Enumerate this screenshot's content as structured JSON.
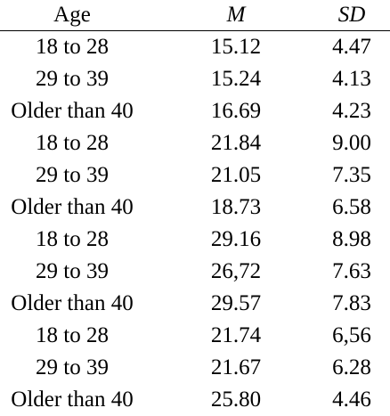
{
  "table": {
    "headers": {
      "age": "Age",
      "m": "M",
      "sd": "SD"
    },
    "rows": [
      {
        "age": "18 to 28",
        "m": "15.12",
        "sd": "4.47"
      },
      {
        "age": "29 to 39",
        "m": "15.24",
        "sd": "4.13"
      },
      {
        "age": "Older than 40",
        "m": "16.69",
        "sd": "4.23"
      },
      {
        "age": "18 to 28",
        "m": "21.84",
        "sd": "9.00"
      },
      {
        "age": "29 to 39",
        "m": "21.05",
        "sd": "7.35"
      },
      {
        "age": "Older than 40",
        "m": "18.73",
        "sd": "6.58"
      },
      {
        "age": "18 to 28",
        "m": "29.16",
        "sd": "8.98"
      },
      {
        "age": "29 to 39",
        "m": "26,72",
        "sd": "7.63"
      },
      {
        "age": "Older than 40",
        "m": "29.57",
        "sd": "7.83"
      },
      {
        "age": "18 to 28",
        "m": "21.74",
        "sd": "6,56"
      },
      {
        "age": "29 to 39",
        "m": "21.67",
        "sd": "6.28"
      },
      {
        "age": "Older than 40",
        "m": "25.80",
        "sd": "4.46"
      }
    ]
  }
}
